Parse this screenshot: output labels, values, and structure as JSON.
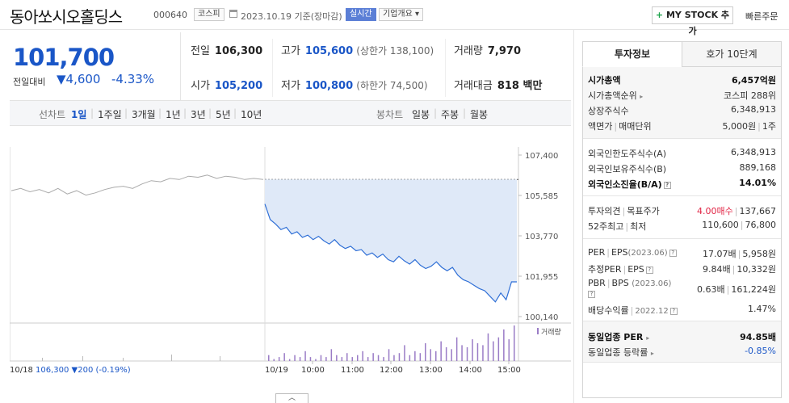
{
  "header": {
    "stock_name": "동아쏘시오홀딩스",
    "stock_code": "000640",
    "market_tag": "코스피",
    "date_text": "2023.10.19 기준(장마감)",
    "realtime_tag": "실시간",
    "overview_tag": "기업개요 ▾",
    "mystock_plus": "+",
    "mystock_label": "MY STOCK 추가",
    "quick_order": "빠른주문"
  },
  "price": {
    "current": "101,700",
    "change_label": "전일대비",
    "change": "▼4,600",
    "change_pct": "-4.33%"
  },
  "stats": {
    "prev_close_label": "전일",
    "prev_close": "106,300",
    "high_label": "고가",
    "high": "105,600",
    "upper_limit": "(상한가 138,100)",
    "volume_label": "거래량",
    "volume": "7,970",
    "open_label": "시가",
    "open": "105,200",
    "low_label": "저가",
    "low": "100,800",
    "lower_limit": "(하한가 74,500)",
    "amount_label": "거래대금",
    "amount": "818 백만"
  },
  "periods": {
    "line_label": "선차트",
    "items": [
      "1일",
      "1주일",
      "3개월",
      "1년",
      "3년",
      "5년",
      "10년"
    ],
    "active": "1일",
    "candle_label": "봉차트",
    "candle_items": [
      "일봉",
      "주봉",
      "월봉"
    ]
  },
  "chart_data": {
    "type": "line",
    "y_ticks": [
      "107,400",
      "105,585",
      "103,770",
      "101,955",
      "100,140"
    ],
    "ylim": [
      100140,
      107400
    ],
    "volume_label": "거래량",
    "x_ticks": [
      "10/18",
      "10/19",
      "10:00",
      "11:00",
      "12:00",
      "13:00",
      "14:00",
      "15:00"
    ],
    "prev_day_summary": {
      "date": "10/18",
      "close": "106,300",
      "change": "▼200",
      "change_pct": "(-0.19%)"
    },
    "series": [
      {
        "values": [
          105800,
          105900,
          105750,
          105850,
          105700,
          105900,
          105650,
          105800,
          105600,
          105700,
          105850,
          105950,
          106000,
          105900,
          106100,
          106250,
          106200,
          106350,
          106300,
          106450,
          106400,
          106500,
          106350,
          106450,
          106400,
          106300,
          106350,
          106300
        ]
      },
      {
        "values": [
          105200,
          104500,
          104300,
          104050,
          104150,
          103850,
          103950,
          103700,
          103800,
          103600,
          103750,
          103550,
          103400,
          103600,
          103350,
          103200,
          103300,
          103100,
          103150,
          102900,
          103000,
          102800,
          102950,
          102700,
          102600,
          102850,
          102650,
          102500,
          102700,
          102450,
          102300,
          102400,
          102600,
          102350,
          102200,
          102350,
          102000,
          101800,
          101700,
          101550,
          101400,
          101300,
          101050,
          100800,
          101200,
          100900,
          101700,
          101700
        ]
      }
    ],
    "prev_close": 106300,
    "volume": [
      3,
      1,
      2,
      4,
      1,
      3,
      2,
      5,
      2,
      1,
      3,
      2,
      6,
      3,
      2,
      4,
      2,
      3,
      5,
      2,
      4,
      3,
      2,
      6,
      3,
      4,
      8,
      3,
      5,
      4,
      9,
      6,
      5,
      10,
      7,
      6,
      12,
      8,
      7,
      11,
      9,
      8,
      14,
      10,
      12,
      16,
      11,
      18
    ]
  },
  "panel": {
    "tab_active": "투자정보",
    "tab_inactive": "호가 10단계",
    "market_cap_label": "시가총액",
    "market_cap": "6,457억원",
    "market_cap_rank_label": "시가총액순위",
    "market_cap_rank": "코스피 288위",
    "shares_label": "상장주식수",
    "shares": "6,348,913",
    "par_label": "액면가",
    "unit_label": "매매단위",
    "par": "5,000원",
    "unit": "1주",
    "foreign_limit_label": "외국인한도주식수(A)",
    "foreign_limit": "6,348,913",
    "foreign_hold_label": "외국인보유주식수(B)",
    "foreign_hold": "889,168",
    "foreign_ratio_label": "외국인소진율(B/A)",
    "foreign_ratio": "14.01%",
    "opinion_label": "투자의견",
    "target_label": "목표주가",
    "opinion": "4.00매수",
    "target": "137,667",
    "high52_label": "52주최고",
    "low52_label": "최저",
    "high52": "110,600",
    "low52": "76,800",
    "per_label": "PER",
    "eps_label": "EPS",
    "per_period": "(2023.06)",
    "per": "17.07배",
    "eps": "5,958원",
    "est_per_label": "추정PER",
    "est_eps_label": "EPS",
    "est_per": "9.84배",
    "est_eps": "10,332원",
    "pbr_label": "PBR",
    "bps_label": "BPS",
    "pbr_period": "(2023.06)",
    "pbr": "0.63배",
    "bps": "161,224원",
    "div_label": "배당수익률",
    "div_period": "2022.12",
    "div": "1.47%",
    "sector_per_label": "동일업종 PER",
    "sector_per": "94.85배",
    "sector_change_label": "동일업종 등락률",
    "sector_change": "-0.85%"
  }
}
